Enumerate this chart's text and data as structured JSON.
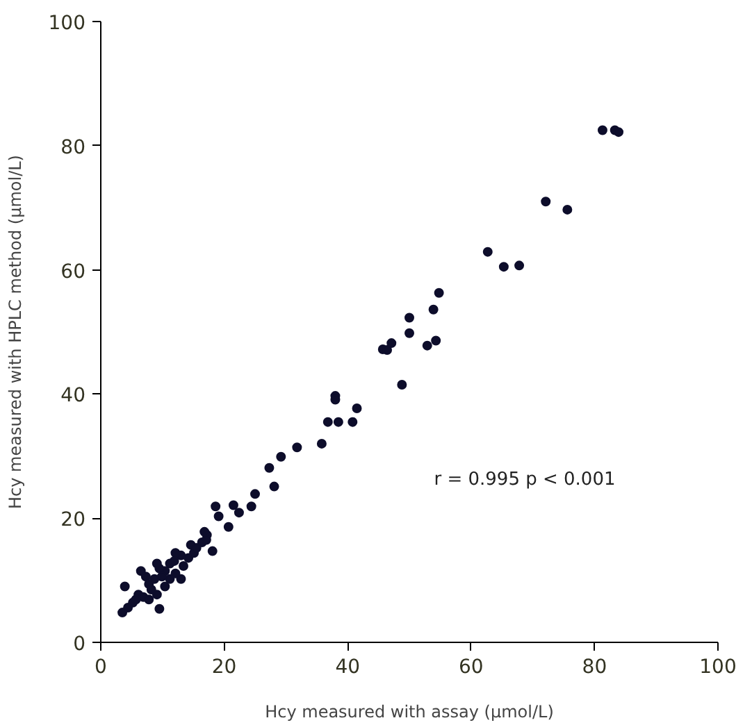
{
  "chart_data": {
    "type": "scatter",
    "xlabel": "Hcy measured with assay (μmol/L)",
    "ylabel": "Hcy measured with HPLC method (μmol/L)",
    "annotations": [
      "r = 0.995  p < 0.001"
    ],
    "xlim": [
      0,
      100
    ],
    "ylim": [
      0,
      100
    ],
    "xticks": [
      0,
      20,
      40,
      60,
      80,
      100
    ],
    "yticks": [
      0,
      20,
      40,
      60,
      80,
      100
    ],
    "grid": false,
    "marker": "circle",
    "series": [
      {
        "color": "#0d0d2b",
        "x": [
          81.3,
          83.3,
          83.9,
          72.1,
          75.6,
          62.7,
          65.3,
          67.8,
          54.8,
          53.9,
          50.0,
          50.0,
          52.9,
          54.3,
          45.7,
          46.4,
          47.1,
          48.8,
          38.0,
          38.0,
          36.8,
          38.5,
          40.8,
          41.5,
          35.8,
          31.8,
          29.2,
          27.3,
          28.1,
          25.0,
          24.4,
          21.5,
          22.4,
          18.6,
          19.1,
          20.7,
          18.1,
          17.2,
          16.4,
          14.6,
          13.0,
          12.1,
          11.2,
          10.4,
          9.5,
          13.0,
          8.7,
          7.8,
          6.5,
          3.9,
          9.5,
          6.1,
          5.2,
          3.5,
          4.4,
          6.9,
          8.2,
          9.1,
          10.4,
          11.2,
          12.1,
          13.4,
          14.2,
          15.1,
          15.5,
          17.1,
          16.8,
          7.8,
          5.7,
          7.3,
          9.9,
          9.1,
          11.9
        ],
        "values": [
          82.5,
          82.5,
          82.2,
          71.0,
          69.7,
          62.9,
          60.5,
          60.7,
          56.3,
          53.6,
          52.3,
          49.8,
          47.8,
          48.6,
          47.2,
          47.1,
          48.2,
          41.5,
          39.7,
          39.1,
          35.5,
          35.5,
          35.5,
          37.7,
          32.0,
          31.4,
          29.9,
          28.1,
          25.1,
          23.9,
          21.9,
          22.1,
          20.9,
          21.9,
          20.3,
          18.6,
          14.7,
          17.3,
          16.1,
          15.7,
          14.0,
          14.4,
          12.7,
          11.5,
          11.9,
          10.2,
          10.2,
          9.4,
          11.5,
          9.0,
          5.4,
          7.7,
          6.4,
          4.8,
          5.6,
          7.3,
          8.5,
          7.7,
          9.0,
          10.2,
          11.1,
          12.3,
          13.6,
          14.4,
          15.2,
          16.5,
          17.8,
          6.9,
          6.9,
          10.6,
          10.6,
          12.7,
          13.1
        ]
      }
    ]
  }
}
